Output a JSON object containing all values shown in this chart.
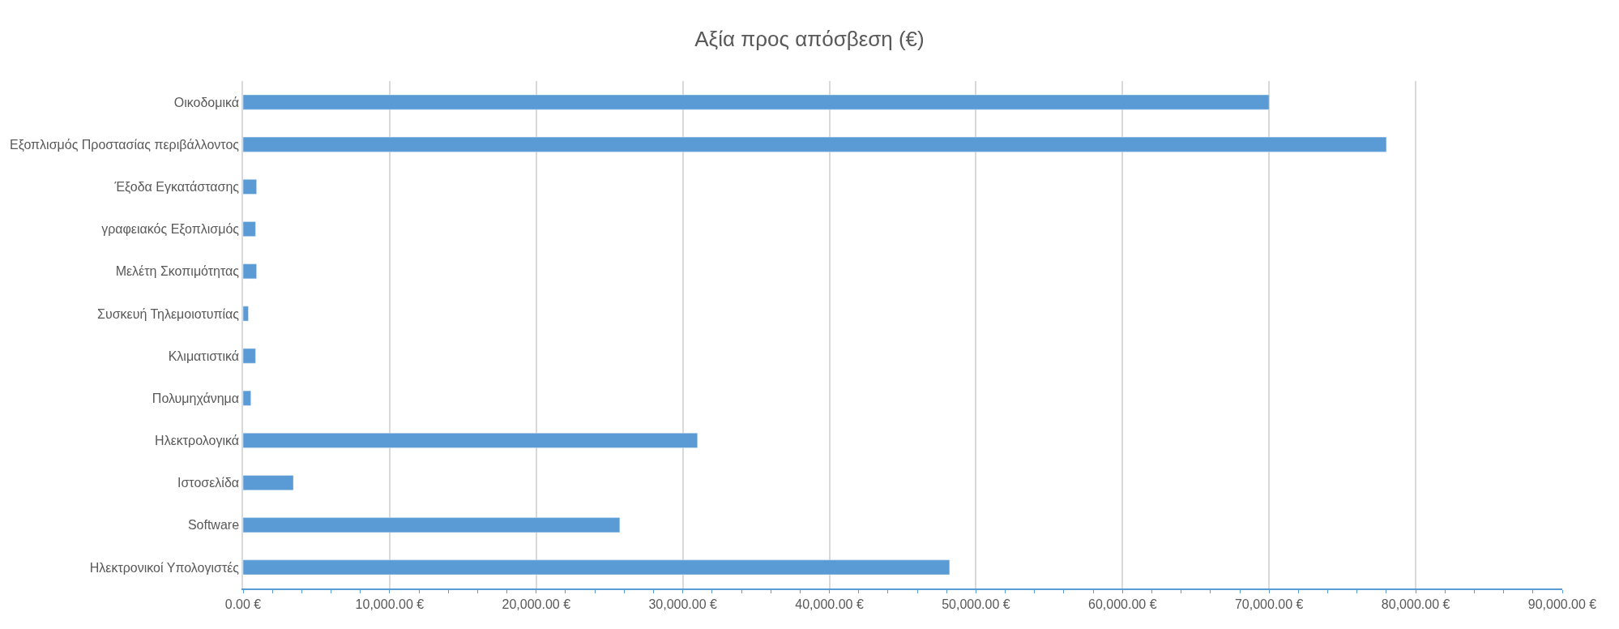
{
  "chart_data": {
    "type": "bar",
    "orientation": "horizontal",
    "title": "Αξία προς απόσβεση (€)",
    "categories": [
      "Οικοδομικά",
      "Εξοπλισμός Προστασίας περιβάλλοντος",
      "Έξοδα Εγκατάστασης",
      "γραφειακός Εξοπλισμός",
      "Μελέτη Σκοπιμότητας",
      "Συσκευή Τηλεμοιοτυπίας",
      "Κλιματιστικά",
      "Πολυμηχάνημα",
      "Ηλεκτρολογικά",
      "Ιστοσελίδα",
      "Software",
      "Ηλεκτρονικοί Υπολογιστές"
    ],
    "values": [
      70000,
      78000,
      920,
      850,
      920,
      360,
      850,
      530,
      31000,
      3430,
      25700,
      48200
    ],
    "color": "#5b9bd5",
    "xlim": [
      0,
      90000
    ],
    "xticks": [
      {
        "value": 0,
        "label": "0.00 €"
      },
      {
        "value": 10000,
        "label": "10,000.00 €"
      },
      {
        "value": 20000,
        "label": "20,000.00 €"
      },
      {
        "value": 30000,
        "label": "30,000.00 €"
      },
      {
        "value": 40000,
        "label": "40,000.00 €"
      },
      {
        "value": 50000,
        "label": "50,000.00 €"
      },
      {
        "value": 60000,
        "label": "60,000.00 €"
      },
      {
        "value": 70000,
        "label": "70,000.00 €"
      },
      {
        "value": 80000,
        "label": "80,000.00 €"
      },
      {
        "value": 90000,
        "label": "90,000.00 €"
      }
    ],
    "grid": "x"
  }
}
